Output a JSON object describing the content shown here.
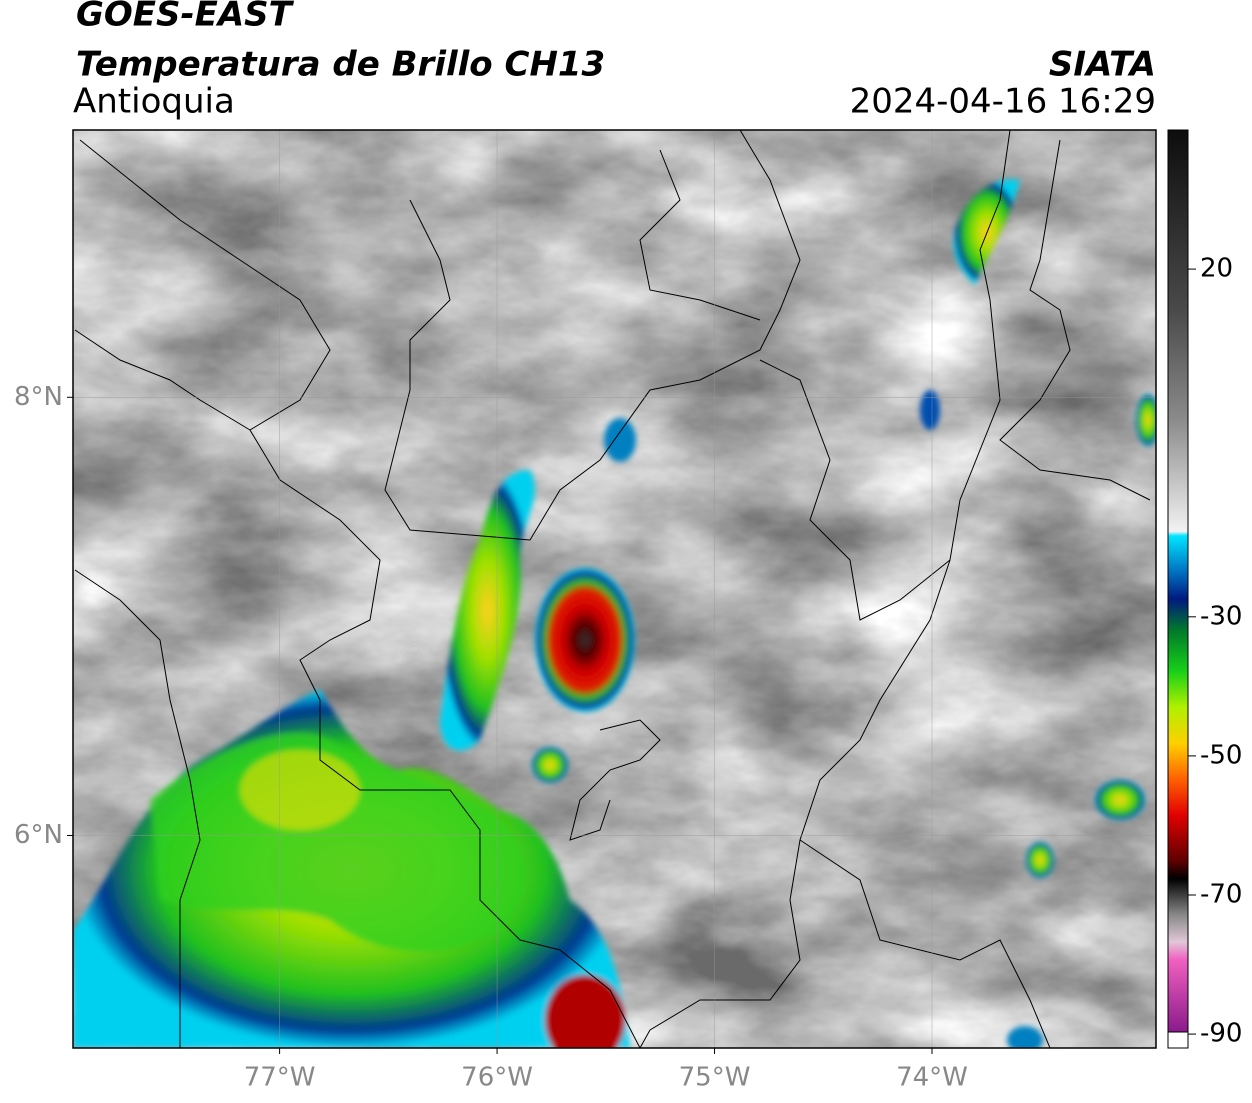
{
  "header": {
    "satellite": "GOES-EAST",
    "product": "Temperatura de Brillo CH13",
    "region": "Antioquia",
    "source": "SIATA",
    "datetime": "2024-04-16 16:29"
  },
  "map": {
    "xlim": [
      -77.95,
      -72.97
    ],
    "ylim": [
      5.03,
      9.22
    ],
    "xticks": [
      {
        "value": -77,
        "label": "77°W"
      },
      {
        "value": -76,
        "label": "76°W"
      },
      {
        "value": -75,
        "label": "75°W"
      },
      {
        "value": -74,
        "label": "74°W"
      }
    ],
    "yticks": [
      {
        "value": 8,
        "label": "8°N"
      },
      {
        "value": 6,
        "label": "6°N"
      }
    ],
    "grid": true
  },
  "colorbar": {
    "lim": [
      -92,
      40
    ],
    "ticks": [
      20,
      -30,
      -50,
      -70,
      -90
    ]
  }
}
